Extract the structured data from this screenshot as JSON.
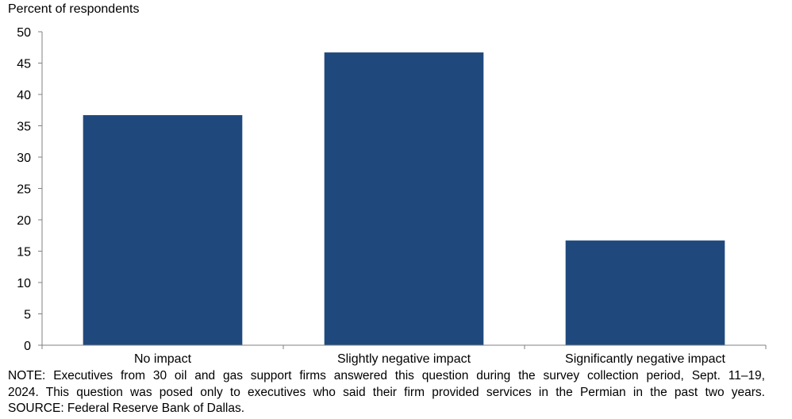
{
  "chart_data": {
    "type": "bar",
    "ylabel": "Percent of respondents",
    "xlabel": "",
    "categories": [
      "No impact",
      "Slightly negative impact",
      "Significantly negative impact"
    ],
    "values": [
      36.7,
      46.7,
      16.7
    ],
    "ylim": [
      0,
      50
    ],
    "yticks": [
      "0",
      "5",
      "10",
      "15",
      "20",
      "25",
      "30",
      "35",
      "40",
      "45",
      "50"
    ],
    "grid": false,
    "legend": "none",
    "bar_color": "#1f497d"
  },
  "notes": {
    "note_line_1": "NOTE: Executives from 30 oil and gas support firms answered this question during the survey collection period, Sept. 11–19,",
    "note_line_2": "2024. This question was posed only to executives who said their firm provided services in the Permian in the past two years.",
    "source": "SOURCE: Federal Reserve Bank of Dallas."
  }
}
